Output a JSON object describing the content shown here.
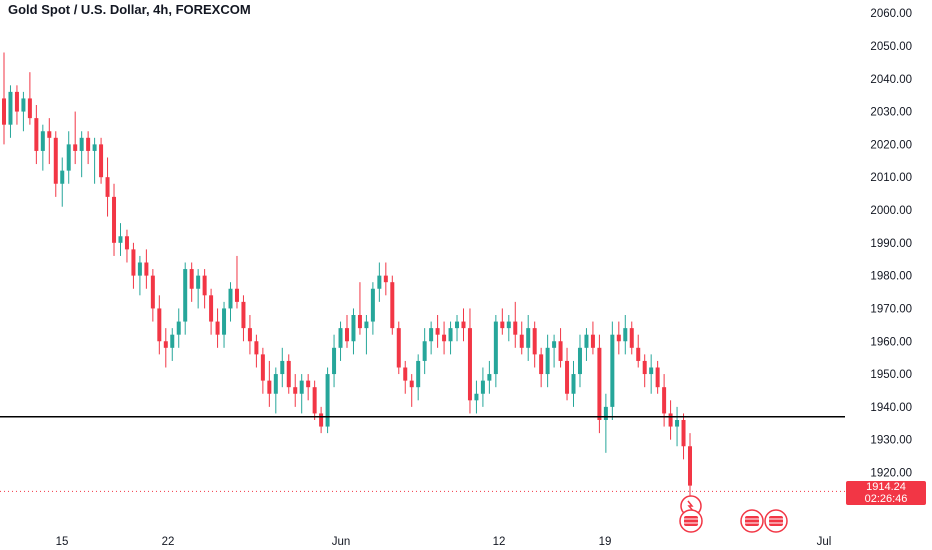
{
  "header": {
    "title": "Gold Spot / U.S. Dollar, 4h, FOREXCOM"
  },
  "price_tag": {
    "price": "1914.24",
    "countdown": "02:26:46"
  },
  "colors": {
    "up": "#26a69a",
    "down": "#f23645",
    "line": "#000000",
    "grid_text": "#131722"
  },
  "chart_data": {
    "type": "candlestick",
    "title": "Gold Spot / U.S. Dollar, 4h, FOREXCOM",
    "ylim": [
      1904,
      2064
    ],
    "y_ticks": [
      "2060.00",
      "2050.00",
      "2040.00",
      "2030.00",
      "2020.00",
      "2010.00",
      "2000.00",
      "1990.00",
      "1980.00",
      "1970.00",
      "1960.00",
      "1950.00",
      "1940.00",
      "1930.00",
      "1920.00"
    ],
    "x_ticks": [
      "15",
      "22",
      "Jun",
      "12",
      "19",
      "Jul"
    ],
    "horizontal_line": 1937,
    "current_price": 1914.24,
    "candles": [
      [
        2034,
        2048,
        2020,
        2026
      ],
      [
        2026,
        2038,
        2022,
        2036
      ],
      [
        2036,
        2038,
        2026,
        2030
      ],
      [
        2030,
        2036,
        2024,
        2034
      ],
      [
        2034,
        2042,
        2026,
        2028
      ],
      [
        2028,
        2032,
        2014,
        2018
      ],
      [
        2018,
        2026,
        2012,
        2024
      ],
      [
        2024,
        2028,
        2014,
        2022
      ],
      [
        2022,
        2024,
        2004,
        2008
      ],
      [
        2008,
        2016,
        2001,
        2012
      ],
      [
        2012,
        2024,
        2008,
        2020
      ],
      [
        2020,
        2030,
        2014,
        2018
      ],
      [
        2018,
        2024,
        2010,
        2022
      ],
      [
        2022,
        2024,
        2014,
        2018
      ],
      [
        2018,
        2022,
        2008,
        2020
      ],
      [
        2020,
        2022,
        2008,
        2010
      ],
      [
        2010,
        2016,
        1998,
        2004
      ],
      [
        2004,
        2008,
        1986,
        1990
      ],
      [
        1990,
        1996,
        1986,
        1992
      ],
      [
        1992,
        1994,
        1984,
        1988
      ],
      [
        1988,
        1990,
        1976,
        1980
      ],
      [
        1980,
        1986,
        1974,
        1984
      ],
      [
        1984,
        1988,
        1976,
        1980
      ],
      [
        1980,
        1982,
        1966,
        1970
      ],
      [
        1970,
        1974,
        1956,
        1960
      ],
      [
        1960,
        1964,
        1952,
        1958
      ],
      [
        1958,
        1964,
        1954,
        1962
      ],
      [
        1962,
        1970,
        1958,
        1966
      ],
      [
        1966,
        1984,
        1962,
        1982
      ],
      [
        1982,
        1984,
        1972,
        1976
      ],
      [
        1976,
        1982,
        1970,
        1980
      ],
      [
        1980,
        1982,
        1970,
        1974
      ],
      [
        1974,
        1976,
        1962,
        1966
      ],
      [
        1966,
        1970,
        1958,
        1962
      ],
      [
        1962,
        1972,
        1958,
        1970
      ],
      [
        1970,
        1978,
        1966,
        1976
      ],
      [
        1976,
        1986,
        1970,
        1972
      ],
      [
        1972,
        1974,
        1960,
        1964
      ],
      [
        1964,
        1968,
        1956,
        1960
      ],
      [
        1960,
        1962,
        1952,
        1956
      ],
      [
        1956,
        1958,
        1944,
        1948
      ],
      [
        1948,
        1954,
        1940,
        1944
      ],
      [
        1944,
        1952,
        1938,
        1950
      ],
      [
        1950,
        1958,
        1946,
        1954
      ],
      [
        1954,
        1956,
        1944,
        1946
      ],
      [
        1946,
        1950,
        1940,
        1944
      ],
      [
        1944,
        1950,
        1938,
        1948
      ],
      [
        1948,
        1950,
        1942,
        1946
      ],
      [
        1946,
        1948,
        1936,
        1938
      ],
      [
        1938,
        1940,
        1932,
        1934
      ],
      [
        1934,
        1952,
        1932,
        1950
      ],
      [
        1950,
        1962,
        1946,
        1958
      ],
      [
        1958,
        1966,
        1954,
        1964
      ],
      [
        1964,
        1968,
        1958,
        1960
      ],
      [
        1960,
        1970,
        1956,
        1968
      ],
      [
        1968,
        1978,
        1962,
        1964
      ],
      [
        1964,
        1968,
        1956,
        1966
      ],
      [
        1966,
        1978,
        1962,
        1976
      ],
      [
        1976,
        1984,
        1972,
        1980
      ],
      [
        1980,
        1984,
        1974,
        1978
      ],
      [
        1978,
        1980,
        1962,
        1964
      ],
      [
        1964,
        1966,
        1950,
        1952
      ],
      [
        1952,
        1954,
        1944,
        1948
      ],
      [
        1948,
        1950,
        1940,
        1946
      ],
      [
        1946,
        1956,
        1942,
        1954
      ],
      [
        1954,
        1964,
        1950,
        1960
      ],
      [
        1960,
        1966,
        1956,
        1964
      ],
      [
        1964,
        1968,
        1958,
        1962
      ],
      [
        1962,
        1966,
        1956,
        1960
      ],
      [
        1960,
        1966,
        1956,
        1964
      ],
      [
        1964,
        1968,
        1960,
        1966
      ],
      [
        1966,
        1970,
        1960,
        1964
      ],
      [
        1964,
        1970,
        1938,
        1942
      ],
      [
        1942,
        1948,
        1938,
        1944
      ],
      [
        1944,
        1952,
        1940,
        1948
      ],
      [
        1948,
        1954,
        1944,
        1950
      ],
      [
        1950,
        1968,
        1946,
        1966
      ],
      [
        1966,
        1970,
        1962,
        1964
      ],
      [
        1964,
        1968,
        1960,
        1966
      ],
      [
        1966,
        1972,
        1958,
        1962
      ],
      [
        1962,
        1966,
        1956,
        1958
      ],
      [
        1958,
        1968,
        1954,
        1964
      ],
      [
        1964,
        1966,
        1952,
        1956
      ],
      [
        1956,
        1958,
        1946,
        1950
      ],
      [
        1950,
        1962,
        1946,
        1958
      ],
      [
        1958,
        1962,
        1952,
        1960
      ],
      [
        1960,
        1964,
        1952,
        1954
      ],
      [
        1954,
        1958,
        1942,
        1944
      ],
      [
        1944,
        1954,
        1940,
        1950
      ],
      [
        1950,
        1962,
        1946,
        1958
      ],
      [
        1958,
        1964,
        1954,
        1962
      ],
      [
        1962,
        1966,
        1956,
        1958
      ],
      [
        1958,
        1962,
        1932,
        1936
      ],
      [
        1936,
        1944,
        1926,
        1940
      ],
      [
        1940,
        1966,
        1936,
        1962
      ],
      [
        1962,
        1966,
        1956,
        1960
      ],
      [
        1960,
        1968,
        1956,
        1964
      ],
      [
        1964,
        1966,
        1956,
        1958
      ],
      [
        1958,
        1962,
        1952,
        1954
      ],
      [
        1954,
        1956,
        1946,
        1950
      ],
      [
        1950,
        1956,
        1944,
        1952
      ],
      [
        1952,
        1954,
        1944,
        1946
      ],
      [
        1946,
        1950,
        1934,
        1938
      ],
      [
        1938,
        1942,
        1930,
        1934
      ],
      [
        1934,
        1940,
        1928,
        1936
      ],
      [
        1936,
        1938,
        1924,
        1928
      ],
      [
        1928,
        1932,
        1912,
        1916
      ]
    ]
  }
}
